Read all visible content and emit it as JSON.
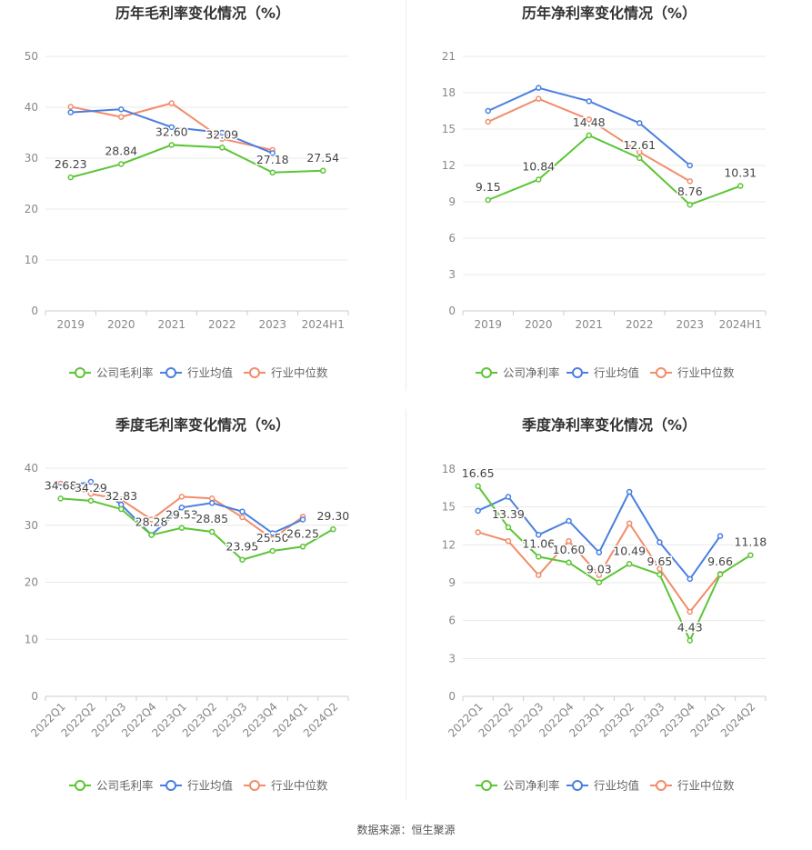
{
  "source": "数据来源：恒生聚源",
  "colors": {
    "company": "#5cc535",
    "avg": "#4a7fe0",
    "median": "#f28c6a"
  },
  "chart_data": [
    {
      "type": "line",
      "title": "历年毛利率变化情况（%）",
      "categories": [
        "2019",
        "2020",
        "2021",
        "2022",
        "2023",
        "2024H1"
      ],
      "ylim": [
        0,
        50
      ],
      "yticks": [
        0,
        10,
        20,
        30,
        40,
        50
      ],
      "series": [
        {
          "name": "公司毛利率",
          "values": [
            26.23,
            28.84,
            32.6,
            32.09,
            27.18,
            27.54
          ],
          "labels": [
            "26.23",
            "28.84",
            "32.60",
            "32.09",
            "27.18",
            "27.54"
          ]
        },
        {
          "name": "行业均值",
          "values": [
            39.0,
            39.6,
            36.1,
            35.0,
            31.0,
            null
          ]
        },
        {
          "name": "行业中位数",
          "values": [
            40.1,
            38.1,
            40.8,
            33.8,
            31.6,
            null
          ]
        }
      ],
      "legend": [
        "公司毛利率",
        "行业均值",
        "行业中位数"
      ],
      "legend_position": "bottom"
    },
    {
      "type": "line",
      "title": "历年净利率变化情况（%）",
      "categories": [
        "2019",
        "2020",
        "2021",
        "2022",
        "2023",
        "2024H1"
      ],
      "ylim": [
        0,
        21
      ],
      "yticks": [
        0,
        3,
        6,
        9,
        12,
        15,
        18,
        21
      ],
      "series": [
        {
          "name": "公司净利率",
          "values": [
            9.15,
            10.84,
            14.48,
            12.61,
            8.76,
            10.31
          ],
          "labels": [
            "9.15",
            "10.84",
            "14.48",
            "12.61",
            "8.76",
            "10.31"
          ]
        },
        {
          "name": "行业均值",
          "values": [
            16.5,
            18.4,
            17.3,
            15.5,
            12.0,
            null
          ]
        },
        {
          "name": "行业中位数",
          "values": [
            15.6,
            17.5,
            15.8,
            13.1,
            10.7,
            null
          ]
        }
      ],
      "legend": [
        "公司净利率",
        "行业均值",
        "行业中位数"
      ],
      "legend_position": "bottom"
    },
    {
      "type": "line",
      "title": "季度毛利率变化情况（%）",
      "categories": [
        "2022Q1",
        "2022Q2",
        "2022Q3",
        "2022Q4",
        "2023Q1",
        "2023Q2",
        "2023Q3",
        "2023Q4",
        "2024Q1",
        "2024Q2"
      ],
      "ylim": [
        0,
        40
      ],
      "yticks": [
        0,
        10,
        20,
        30,
        40
      ],
      "series": [
        {
          "name": "公司毛利率",
          "values": [
            34.68,
            34.29,
            32.83,
            28.28,
            29.53,
            28.85,
            23.95,
            25.5,
            26.25,
            29.3
          ],
          "labels": [
            "34.68",
            "34.29",
            "32.83",
            "28.28",
            "29.53",
            "28.85",
            "23.95",
            "25.50",
            "26.25",
            "29.30"
          ]
        },
        {
          "name": "行业均值",
          "values": [
            36.7,
            37.6,
            33.6,
            28.3,
            33.1,
            33.9,
            32.4,
            28.6,
            31.0,
            null
          ]
        },
        {
          "name": "行业中位数",
          "values": [
            37.3,
            35.5,
            34.5,
            31.0,
            35.0,
            34.7,
            31.4,
            27.6,
            31.5,
            null
          ]
        }
      ],
      "legend": [
        "公司毛利率",
        "行业均值",
        "行业中位数"
      ],
      "legend_position": "bottom"
    },
    {
      "type": "line",
      "title": "季度净利率变化情况（%）",
      "categories": [
        "2022Q1",
        "2022Q2",
        "2022Q3",
        "2022Q4",
        "2023Q1",
        "2023Q2",
        "2023Q3",
        "2023Q4",
        "2024Q1",
        "2024Q2"
      ],
      "ylim": [
        0,
        18
      ],
      "yticks": [
        0,
        3,
        6,
        9,
        12,
        15,
        18
      ],
      "series": [
        {
          "name": "公司净利率",
          "values": [
            16.65,
            13.39,
            11.06,
            10.6,
            9.03,
            10.49,
            9.65,
            4.43,
            9.66,
            11.18
          ],
          "labels": [
            "16.65",
            "13.39",
            "11.06",
            "10.60",
            "9.03",
            "10.49",
            "9.65",
            "4.43",
            "9.66",
            "11.18"
          ]
        },
        {
          "name": "行业均值",
          "values": [
            14.7,
            15.8,
            12.8,
            13.9,
            11.4,
            16.2,
            12.2,
            9.3,
            12.7,
            null
          ]
        },
        {
          "name": "行业中位数",
          "values": [
            13.0,
            12.3,
            9.6,
            12.3,
            9.6,
            13.7,
            10.1,
            6.7,
            9.7,
            null
          ]
        }
      ],
      "legend": [
        "公司净利率",
        "行业均值",
        "行业中位数"
      ],
      "legend_position": "bottom"
    }
  ]
}
